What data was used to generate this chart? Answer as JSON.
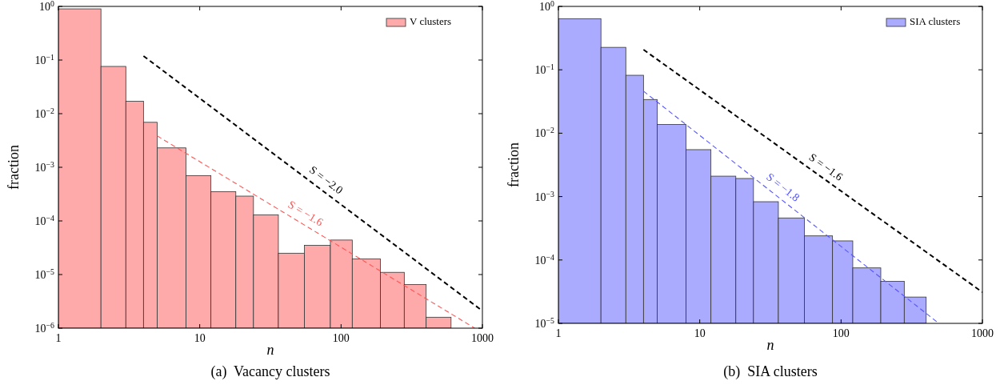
{
  "chart_data": [
    {
      "type": "histogram",
      "xlabel": "n",
      "ylabel": "fraction",
      "log": "xy",
      "legend": "top right",
      "xlim": [
        1,
        1000
      ],
      "xticks": [
        1,
        10,
        100,
        1000
      ],
      "ylim": [
        1e-06,
        1
      ],
      "yticks": [
        {
          "value": 1e-06,
          "label": "10$^{−6}$"
        },
        {
          "value": 1e-05,
          "label": "10$^{−5}$"
        },
        {
          "value": 0.0001,
          "label": "10$^{−4}$"
        },
        {
          "value": 0.001,
          "label": "10$^{−3}$"
        },
        {
          "value": 0.01,
          "label": "10$^{−2}$"
        },
        {
          "value": 0.1,
          "label": "10$^{−1}$"
        },
        {
          "value": 1,
          "label": "10$^{0}$"
        }
      ],
      "series": [
        {
          "name": "V clusters",
          "color": "#ffaaaa",
          "bins": [
            1,
            2,
            3,
            4,
            5,
            8,
            12,
            18,
            24,
            36,
            55,
            84,
            120,
            190,
            280,
            400,
            600
          ],
          "values": [
            0.9,
            0.076,
            0.017,
            0.0069,
            0.0023,
            0.0007,
            0.00035,
            0.00029,
            0.00013,
            2.5e-05,
            3.5e-05,
            4.4e-05,
            1.95e-05,
            1.1e-05,
            6.5e-06,
            1.6e-06
          ]
        },
        {
          "type": "line",
          "name": "S = −2.0",
          "color": "#000000",
          "line_style": "dashed",
          "x": [
            4,
            1000
          ],
          "values": [
            0.119,
            2.1e-06
          ]
        },
        {
          "type": "line",
          "name": "S = −1.6",
          "color": "#ff5555",
          "line_style": "dashed",
          "x": [
            5,
            883
          ],
          "values": [
            0.00385,
            1e-06
          ]
        }
      ],
      "annotations": [
        "(a)  Vacancy clusters"
      ]
    },
    {
      "type": "histogram",
      "xlabel": "n",
      "ylabel": "fraction",
      "log": "xy",
      "legend": "top right",
      "xlim": [
        1,
        1000
      ],
      "xticks": [
        1,
        10,
        100,
        1000
      ],
      "ylim": [
        1e-05,
        1
      ],
      "yticks": [
        {
          "value": 1e-05,
          "label": "10$^{−5}$"
        },
        {
          "value": 0.0001,
          "label": "10$^{−4}$"
        },
        {
          "value": 0.001,
          "label": "10$^{−3}$"
        },
        {
          "value": 0.01,
          "label": "10$^{−2}$"
        },
        {
          "value": 0.1,
          "label": "10$^{−1}$"
        },
        {
          "value": 1,
          "label": "10$^{0}$"
        }
      ],
      "series": [
        {
          "name": "SIA clusters",
          "color": "#aaaaff",
          "bins": [
            1,
            2,
            3,
            4,
            5,
            8,
            12,
            18,
            24,
            36,
            55,
            87,
            121,
            191,
            280,
            400
          ],
          "values": [
            0.64,
            0.226,
            0.082,
            0.034,
            0.0137,
            0.0055,
            0.0021,
            0.00193,
            0.00083,
            0.00046,
            0.00024,
            0.0002,
            7.5e-05,
            4.6e-05,
            2.6e-05
          ]
        },
        {
          "type": "line",
          "name": "S = −1.6",
          "color": "#000000",
          "line_style": "dashed",
          "x": [
            4,
            1000
          ],
          "values": [
            0.208,
            3.1e-05
          ]
        },
        {
          "type": "line",
          "name": "S = −1.8",
          "color": "#5555ff",
          "line_style": "dashed",
          "x": [
            4,
            492
          ],
          "values": [
            0.046,
            1e-05
          ]
        }
      ],
      "annotations": [
        "(b)  SIA clusters"
      ]
    }
  ]
}
